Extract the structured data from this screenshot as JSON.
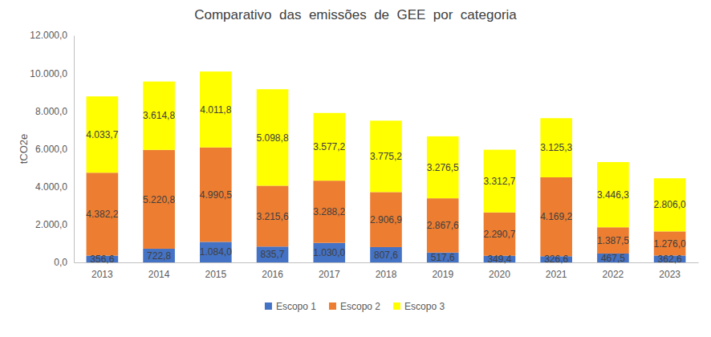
{
  "chart_data": {
    "type": "bar",
    "title": "Comparativo  das  emissões  de  GEE  por  categoria",
    "y_label": "tCO2e",
    "categories": [
      "2013",
      "2014",
      "2015",
      "2016",
      "2017",
      "2018",
      "2019",
      "2020",
      "2021",
      "2022",
      "2023"
    ],
    "series": [
      {
        "name": "Escopo 1",
        "color": "#4472c4",
        "values": [
          356.6,
          722.8,
          1084.0,
          835.7,
          1030.0,
          807.6,
          517.6,
          349.4,
          326.6,
          467.5,
          362.6
        ],
        "value_labels": [
          "356,6",
          "722,8",
          "1.084,0",
          "835,7",
          "1.030,0",
          "807,6",
          "517,6",
          "349,4",
          "326,6",
          "467,5",
          "362,6"
        ]
      },
      {
        "name": "Escopo 2",
        "color": "#ed7d31",
        "values": [
          4382.2,
          5220.8,
          4990.5,
          3215.6,
          3288.2,
          2906.9,
          2867.6,
          2290.7,
          4169.2,
          1387.5,
          1276.0
        ],
        "value_labels": [
          "4.382,2",
          "5.220,8",
          "4.990,5",
          "3.215,6",
          "3.288,2",
          "2.906,9",
          "2.867,6",
          "2.290,7",
          "4.169,2",
          "1.387,5",
          "1.276,0"
        ]
      },
      {
        "name": "Escopo 3",
        "color": "#ffff00",
        "values": [
          4033.7,
          3614.8,
          4011.8,
          5098.8,
          3577.2,
          3775.2,
          3276.5,
          3312.7,
          3125.3,
          3446.3,
          2806.0
        ],
        "value_labels": [
          "4.033,7",
          "3.614,8",
          "4.011,8",
          "5.098,8",
          "3.577,2",
          "3.775,2",
          "3.276,5",
          "3.312,7",
          "3.125,3",
          "3.446,3",
          "2.806,0"
        ]
      }
    ],
    "ylim": [
      0,
      12000
    ],
    "yticks": [
      {
        "value": 0,
        "label": "0,0"
      },
      {
        "value": 2000,
        "label": "2.000,0"
      },
      {
        "value": 4000,
        "label": "4.000,0"
      },
      {
        "value": 6000,
        "label": "6.000,0"
      },
      {
        "value": 8000,
        "label": "8.000,0"
      },
      {
        "value": 10000,
        "label": "10.000,0"
      },
      {
        "value": 12000,
        "label": "12.000,0"
      }
    ],
    "stacked": true,
    "data_labels": true,
    "grid": false,
    "legend": "bottom"
  }
}
